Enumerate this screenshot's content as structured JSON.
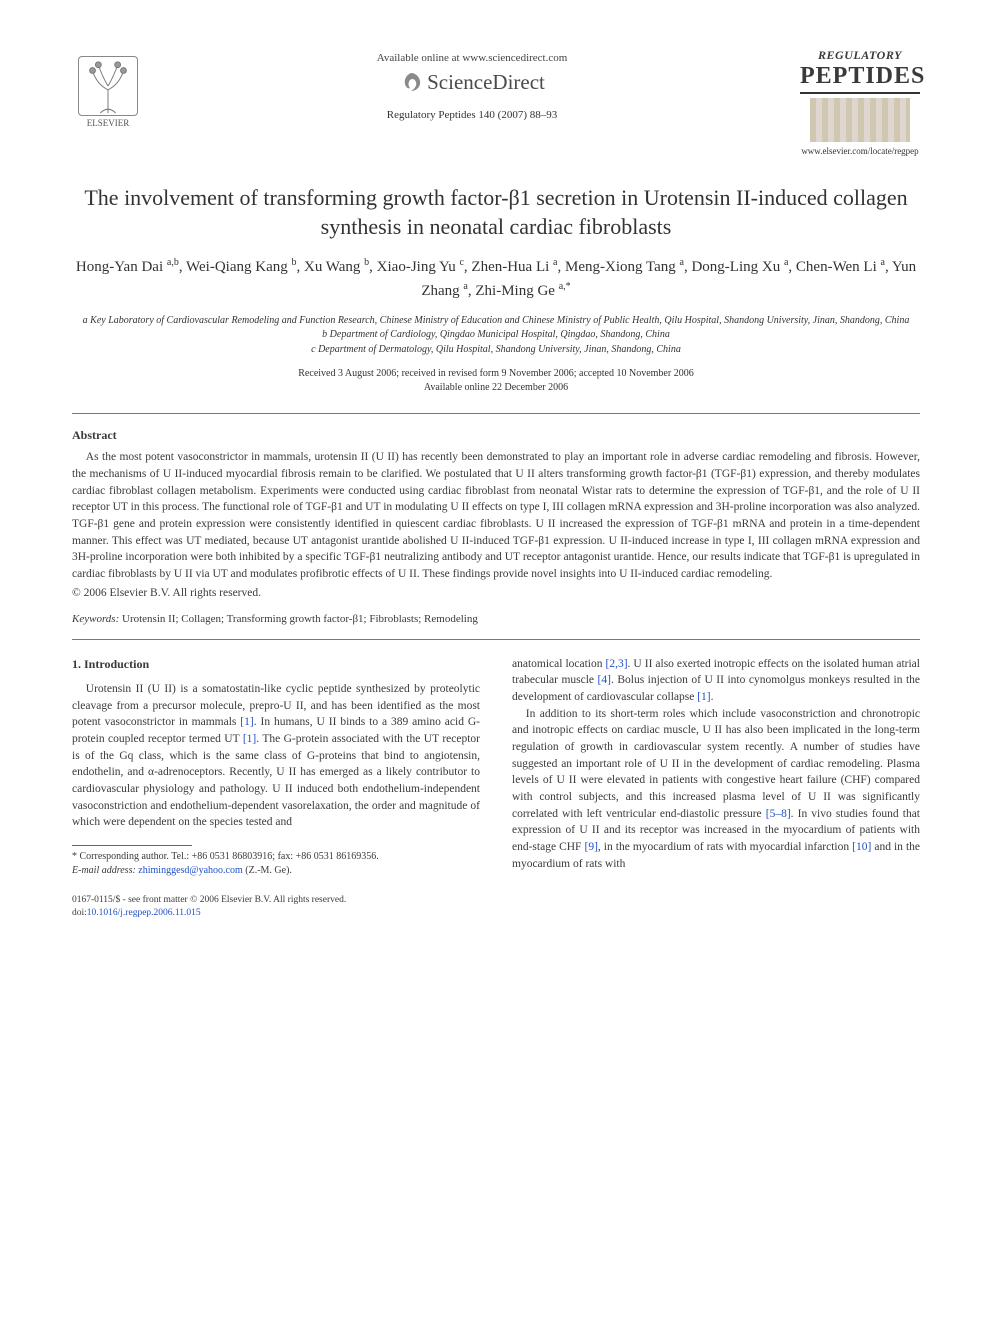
{
  "header": {
    "available_online": "Available online at www.sciencedirect.com",
    "sciencedirect": "ScienceDirect",
    "journal_ref": "Regulatory Peptides 140 (2007) 88–93",
    "elsevier_label": "ELSEVIER",
    "cover": {
      "regulatory": "REGULATORY",
      "peptides": "PEPTIDES",
      "url": "www.elsevier.com/locate/regpep"
    }
  },
  "title": "The involvement of transforming growth factor-β1 secretion in Urotensin II-induced collagen synthesis in neonatal cardiac fibroblasts",
  "authors_html": "Hong-Yan Dai <sup>a,b</sup>, Wei-Qiang Kang <sup>b</sup>, Xu Wang <sup>b</sup>, Xiao-Jing Yu <sup>c</sup>, Zhen-Hua Li <sup>a</sup>, Meng-Xiong Tang <sup>a</sup>, Dong-Ling Xu <sup>a</sup>, Chen-Wen Li <sup>a</sup>, Yun Zhang <sup>a</sup>, Zhi-Ming Ge <sup>a,*</sup>",
  "affiliations": [
    "a Key Laboratory of Cardiovascular Remodeling and Function Research, Chinese Ministry of Education and Chinese Ministry of Public Health, Qilu Hospital, Shandong University, Jinan, Shandong, China",
    "b Department of Cardiology, Qingdao Municipal Hospital, Qingdao, Shandong, China",
    "c Department of Dermatology, Qilu Hospital, Shandong University, Jinan, Shandong, China"
  ],
  "dates": {
    "received": "Received 3 August 2006; received in revised form 9 November 2006; accepted 10 November 2006",
    "online": "Available online 22 December 2006"
  },
  "abstract": {
    "heading": "Abstract",
    "body": "As the most potent vasoconstrictor in mammals, urotensin II (U II) has recently been demonstrated to play an important role in adverse cardiac remodeling and fibrosis. However, the mechanisms of U II-induced myocardial fibrosis remain to be clarified. We postulated that U II alters transforming growth factor-β1 (TGF-β1) expression, and thereby modulates cardiac fibroblast collagen metabolism. Experiments were conducted using cardiac fibroblast from neonatal Wistar rats to determine the expression of TGF-β1, and the role of U II receptor UT in this process. The functional role of TGF-β1 and UT in modulating U II effects on type I, III collagen mRNA expression and 3H-proline incorporation was also analyzed. TGF-β1 gene and protein expression were consistently identified in quiescent cardiac fibroblasts. U II increased the expression of TGF-β1 mRNA and protein in a time-dependent manner. This effect was UT mediated, because UT antagonist urantide abolished U II-induced TGF-β1 expression. U II-induced increase in type I, III collagen mRNA expression and 3H-proline incorporation were both inhibited by a specific TGF-β1 neutralizing antibody and UT receptor antagonist urantide. Hence, our results indicate that TGF-β1 is upregulated in cardiac fibroblasts by U II via UT and modulates profibrotic effects of U II. These findings provide novel insights into U II-induced cardiac remodeling.",
    "copyright": "© 2006 Elsevier B.V. All rights reserved."
  },
  "keywords": {
    "label": "Keywords:",
    "text": " Urotensin II; Collagen; Transforming growth factor-β1; Fibroblasts; Remodeling"
  },
  "intro": {
    "heading": "1. Introduction",
    "left_p1_a": "Urotensin II (U II) is a somatostatin-like cyclic peptide synthesized by proteolytic cleavage from a precursor molecule, prepro-U II, and has been identified as the most potent vasoconstrictor in mammals ",
    "left_p1_a_ref1": "[1]",
    "left_p1_b": ". In humans, U II binds to a 389 amino acid G-protein coupled receptor termed UT ",
    "left_p1_b_ref1": "[1]",
    "left_p1_c": ". The G-protein associated with the UT receptor is of the Gq class, which is the same class of G-proteins that bind to angiotensin, endothelin, and α-adrenoceptors. Recently, U II has emerged as a likely contributor to cardiovascular physiology and pathology. U II induced both endothelium-independent vasoconstriction and endothelium-dependent vasorelaxation, the order and magnitude of which were dependent on the species tested and",
    "right_p1_a": "anatomical location ",
    "right_p1_a_ref23": "[2,3]",
    "right_p1_b": ". U II also exerted inotropic effects on the isolated human atrial trabecular muscle ",
    "right_p1_b_ref4": "[4]",
    "right_p1_c": ". Bolus injection of U II into cynomolgus monkeys resulted in the development of cardiovascular collapse ",
    "right_p1_c_ref1": "[1]",
    "right_p1_d": ".",
    "right_p2_a": "In addition to its short-term roles which include vasoconstriction and chronotropic and inotropic effects on cardiac muscle, U II has also been implicated in the long-term regulation of growth in cardiovascular system recently. A number of studies have suggested an important role of U II in the development of cardiac remodeling. Plasma levels of U II were elevated in patients with congestive heart failure (CHF) compared with control subjects, and this increased plasma level of U II was significantly correlated with left ventricular end-diastolic pressure ",
    "right_p2_a_ref58": "[5–8]",
    "right_p2_b": ". In vivo studies found that expression of U II and its receptor was increased in the myocardium of patients with end-stage CHF ",
    "right_p2_b_ref9": "[9]",
    "right_p2_c": ", in the myocardium of rats with myocardial infarction ",
    "right_p2_c_ref10": "[10]",
    "right_p2_d": " and in the myocardium of rats with"
  },
  "footnote": {
    "corr": "* Corresponding author. Tel.: +86 0531 86803916; fax: +86 0531 86169356.",
    "email_label": "E-mail address:",
    "email": "zhiminggesd@yahoo.com",
    "email_tail": " (Z.-M. Ge)."
  },
  "footer": {
    "line1": "0167-0115/$ - see front matter © 2006 Elsevier B.V. All rights reserved.",
    "doi_label": "doi:",
    "doi": "10.1016/j.regpep.2006.11.015"
  },
  "colors": {
    "link": "#2150c8",
    "text": "#3a3a3a",
    "rule": "#777777"
  },
  "typography": {
    "title_fontsize_pt": 17,
    "body_fontsize_pt": 9,
    "author_fontsize_pt": 11,
    "affil_fontsize_pt": 7.5,
    "font_family": "Times / Georgia serif"
  }
}
